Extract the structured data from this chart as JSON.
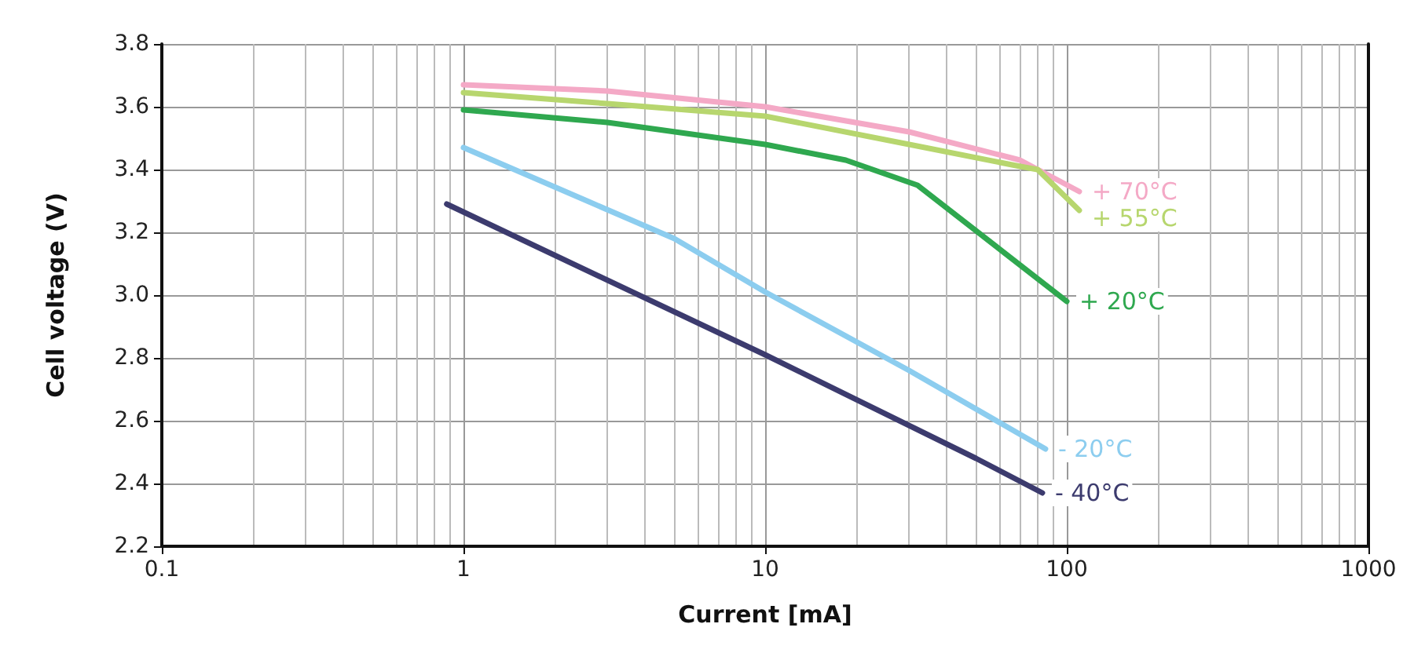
{
  "chart_data": {
    "type": "line",
    "xlabel": "Current [mA]",
    "ylabel": "Cell voltage (V)",
    "log": "x",
    "grid": true,
    "legend": false,
    "marker": "none",
    "line_style": "solid",
    "xlim": [
      0.1,
      1000
    ],
    "xticks": [
      0.1,
      1,
      10,
      100,
      1000
    ],
    "ylim": [
      2.2,
      3.8
    ],
    "yticks": [
      2.2,
      2.4,
      2.6,
      2.8,
      {
        "value": 3,
        "label": "3.0"
      },
      3.2,
      3.4,
      3.6,
      3.8
    ],
    "series": [
      {
        "name": "+ 70°C",
        "color": "#f4a9c6",
        "x": [
          1,
          3,
          10,
          30,
          70,
          110
        ],
        "values": [
          3.67,
          3.65,
          3.6,
          3.52,
          3.43,
          3.33
        ]
      },
      {
        "name": "+ 55°C",
        "color": "#b7d66e",
        "x": [
          1,
          3,
          10,
          30,
          70,
          80,
          110
        ],
        "values": [
          3.645,
          3.61,
          3.57,
          3.48,
          3.41,
          3.4,
          3.27
        ]
      },
      {
        "name": "+ 20°C",
        "color": "#2fa84f",
        "x": [
          1,
          3,
          10,
          18.5,
          32,
          100
        ],
        "values": [
          3.59,
          3.55,
          3.48,
          3.43,
          3.35,
          2.98
        ]
      },
      {
        "name": "- 20°C",
        "color": "#8ccdef",
        "x": [
          1,
          5,
          10,
          30,
          85
        ],
        "values": [
          3.47,
          3.18,
          3.01,
          2.76,
          2.51
        ]
      },
      {
        "name": "- 40°C",
        "color": "#3c3b6e",
        "x": [
          0.88,
          10,
          50,
          83
        ],
        "values": [
          3.29,
          2.81,
          2.48,
          2.37
        ]
      }
    ]
  }
}
